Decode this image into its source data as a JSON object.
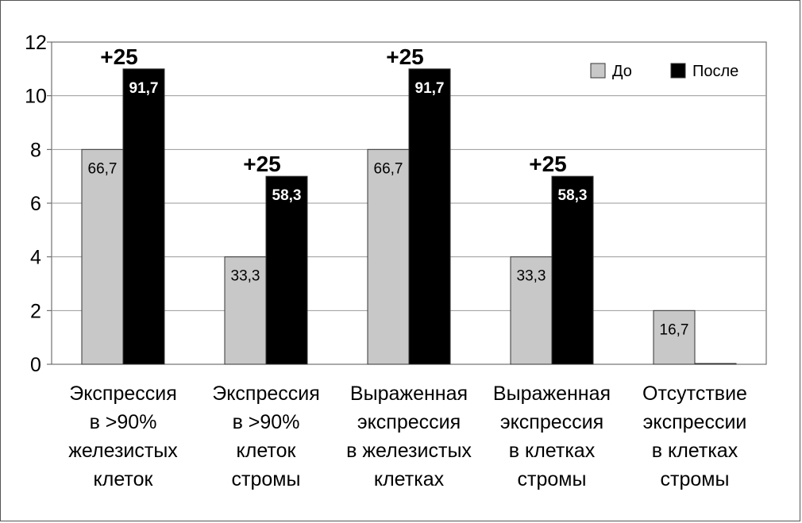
{
  "chart_data": {
    "type": "bar",
    "ylim": [
      0,
      12
    ],
    "yticks": [
      "0",
      "2",
      "4",
      "6",
      "8",
      "10",
      "12"
    ],
    "grid": true,
    "legend_position": "top-right",
    "categories": [
      [
        "Экспрессия",
        "в >90%",
        "железистых",
        "клеток"
      ],
      [
        "Экспрессия",
        "в >90%",
        "клеток",
        "стромы"
      ],
      [
        "Выраженная",
        "экспрессия",
        "в железистых",
        "клетках"
      ],
      [
        "Выраженная",
        "экспрессия",
        "в клетках",
        "стромы"
      ],
      [
        "Отсутствие",
        "экспрессии",
        "в клетках",
        "стромы"
      ]
    ],
    "series": [
      {
        "name": "До",
        "color": "#c8c8c8",
        "values": [
          8,
          4,
          8,
          4,
          2
        ],
        "labels": [
          "66,7",
          "33,3",
          "66,7",
          "33,3",
          "16,7"
        ]
      },
      {
        "name": "После",
        "color": "#000000",
        "values": [
          11,
          7,
          11,
          7,
          0
        ],
        "labels": [
          "91,7",
          "58,3",
          "91,7",
          "58,3",
          ""
        ]
      }
    ],
    "annotations": [
      "+25",
      "+25",
      "+25",
      "+25",
      ""
    ]
  }
}
